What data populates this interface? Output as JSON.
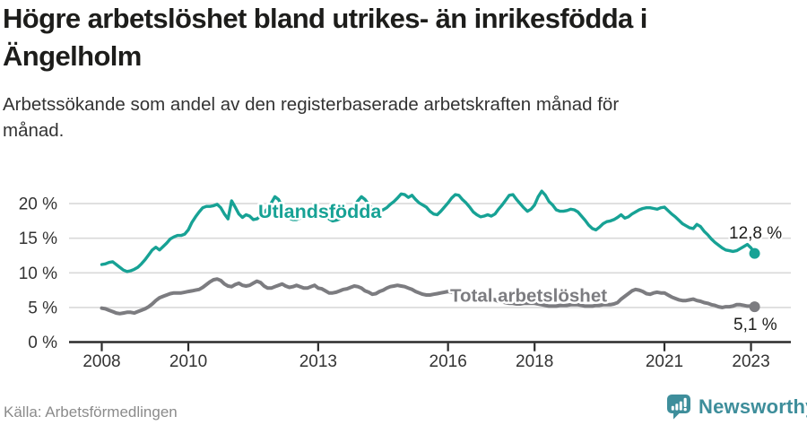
{
  "chart_data": {
    "type": "line",
    "title": "Högre arbetslöshet bland utrikes- än inrikesfödda i\nÄngelholm",
    "subtitle": "Arbetssökande som andel av den registerbaserade arbetskraften månad för\nmånad.",
    "unit": "%",
    "x_start_year": 2008,
    "x_step_months": 1,
    "x_ticks": [
      2008,
      2010,
      2013,
      2016,
      2018,
      2021,
      2023
    ],
    "y_ticks": [
      0,
      5,
      10,
      15,
      20
    ],
    "y_tick_format": "{v} %",
    "ylim": [
      0,
      22.8
    ],
    "xlim": [
      2007.25,
      2023.9
    ],
    "grid": "horizontal",
    "legend_position": "inline-labels",
    "colors": {
      "gridline": "#d9d9d9",
      "axis": "#2b2b2b",
      "tick_label": "#333333",
      "value_label": "#1d1d1b"
    },
    "series": [
      {
        "name": "Utlandsfödda",
        "color": "#17a295",
        "end_value_label": "12,8 %",
        "values": [
          11.2,
          11.3,
          11.5,
          11.6,
          11.2,
          10.8,
          10.4,
          10.2,
          10.3,
          10.5,
          10.8,
          11.3,
          11.9,
          12.6,
          13.3,
          13.7,
          13.3,
          13.8,
          14.3,
          14.9,
          15.2,
          15.4,
          15.4,
          15.6,
          16.2,
          17.3,
          18.1,
          18.8,
          19.4,
          19.6,
          19.6,
          19.7,
          19.9,
          19.4,
          18.5,
          17.8,
          20.4,
          19.5,
          18.5,
          18.0,
          18.4,
          18.2,
          17.7,
          17.8,
          18.2,
          18.7,
          19.3,
          20.1,
          21.0,
          20.6,
          19.6,
          18.5,
          17.9,
          17.7,
          17.7,
          17.9,
          18.1,
          18.3,
          18.6,
          19.0,
          19.4,
          19.0,
          18.4,
          17.8,
          17.5,
          17.6,
          17.8,
          18.1,
          18.4,
          18.8,
          19.6,
          20.4,
          21.0,
          20.6,
          19.9,
          19.3,
          18.8,
          18.9,
          19.1,
          19.4,
          19.9,
          20.3,
          20.8,
          21.4,
          21.3,
          20.9,
          21.2,
          20.6,
          20.1,
          19.8,
          19.5,
          18.9,
          18.5,
          18.4,
          18.9,
          19.5,
          20.1,
          20.8,
          21.3,
          21.2,
          20.6,
          20.1,
          19.5,
          18.8,
          18.4,
          18.1,
          18.2,
          18.4,
          18.2,
          18.5,
          19.2,
          19.8,
          20.5,
          21.2,
          21.3,
          20.6,
          20.0,
          19.4,
          18.9,
          19.2,
          19.8,
          21.0,
          21.8,
          21.2,
          20.3,
          19.8,
          19.1,
          18.9,
          18.9,
          19.0,
          19.2,
          19.1,
          18.8,
          18.2,
          17.6,
          16.9,
          16.4,
          16.2,
          16.6,
          17.1,
          17.4,
          17.5,
          17.7,
          18.0,
          18.4,
          17.9,
          18.1,
          18.5,
          18.8,
          19.1,
          19.3,
          19.4,
          19.4,
          19.3,
          19.2,
          19.4,
          19.5,
          19.0,
          18.5,
          18.1,
          17.6,
          17.1,
          16.8,
          16.5,
          16.4,
          17.0,
          16.7,
          16.0,
          15.5,
          14.9,
          14.4,
          14.0,
          13.6,
          13.3,
          13.2,
          13.1,
          13.2,
          13.5,
          13.8,
          14.1,
          13.6,
          12.8
        ]
      },
      {
        "name": "Total arbetslöshet",
        "color": "#7c7c80",
        "end_value_label": "5,1 %",
        "values": [
          4.9,
          4.8,
          4.6,
          4.4,
          4.2,
          4.1,
          4.2,
          4.3,
          4.3,
          4.2,
          4.4,
          4.6,
          4.8,
          5.1,
          5.5,
          6.0,
          6.4,
          6.6,
          6.8,
          7.0,
          7.1,
          7.1,
          7.1,
          7.2,
          7.3,
          7.4,
          7.5,
          7.6,
          7.9,
          8.3,
          8.7,
          9.0,
          9.1,
          8.9,
          8.4,
          8.1,
          8.0,
          8.3,
          8.5,
          8.2,
          8.1,
          8.2,
          8.5,
          8.8,
          8.6,
          8.1,
          7.8,
          7.8,
          8.0,
          8.2,
          8.4,
          8.1,
          7.9,
          8.0,
          8.2,
          8.0,
          7.8,
          7.8,
          8.0,
          8.2,
          7.8,
          7.7,
          7.4,
          7.1,
          7.1,
          7.2,
          7.4,
          7.6,
          7.7,
          7.9,
          8.1,
          8.0,
          7.8,
          7.4,
          7.2,
          6.9,
          7.0,
          7.3,
          7.5,
          7.8,
          8.0,
          8.1,
          8.2,
          8.1,
          8.0,
          7.8,
          7.6,
          7.3,
          7.1,
          6.9,
          6.8,
          6.8,
          6.9,
          7.0,
          7.1,
          7.2,
          7.3,
          7.2,
          7.0,
          6.8,
          6.6,
          6.4,
          6.3,
          6.2,
          6.1,
          6.1,
          6.2,
          6.2,
          6.2,
          6.1,
          5.9,
          5.8,
          5.7,
          5.6,
          5.6,
          5.5,
          5.5,
          5.6,
          5.6,
          5.6,
          5.6,
          5.5,
          5.4,
          5.3,
          5.2,
          5.2,
          5.2,
          5.3,
          5.3,
          5.3,
          5.4,
          5.4,
          5.4,
          5.3,
          5.2,
          5.2,
          5.2,
          5.3,
          5.3,
          5.4,
          5.4,
          5.4,
          5.5,
          5.7,
          6.2,
          6.6,
          7.0,
          7.4,
          7.6,
          7.5,
          7.3,
          7.0,
          6.9,
          7.1,
          7.2,
          7.1,
          7.1,
          6.8,
          6.5,
          6.3,
          6.1,
          6.0,
          6.0,
          6.1,
          6.2,
          6.0,
          5.9,
          5.7,
          5.6,
          5.4,
          5.3,
          5.1,
          5.0,
          5.1,
          5.1,
          5.2,
          5.4,
          5.4,
          5.3,
          5.2,
          5.2,
          5.1
        ]
      }
    ]
  },
  "footer": {
    "source": "Källa: Arbetsförmedlingen",
    "logo_text": "Newsworthy",
    "logo_color": "#3e8e9b"
  }
}
